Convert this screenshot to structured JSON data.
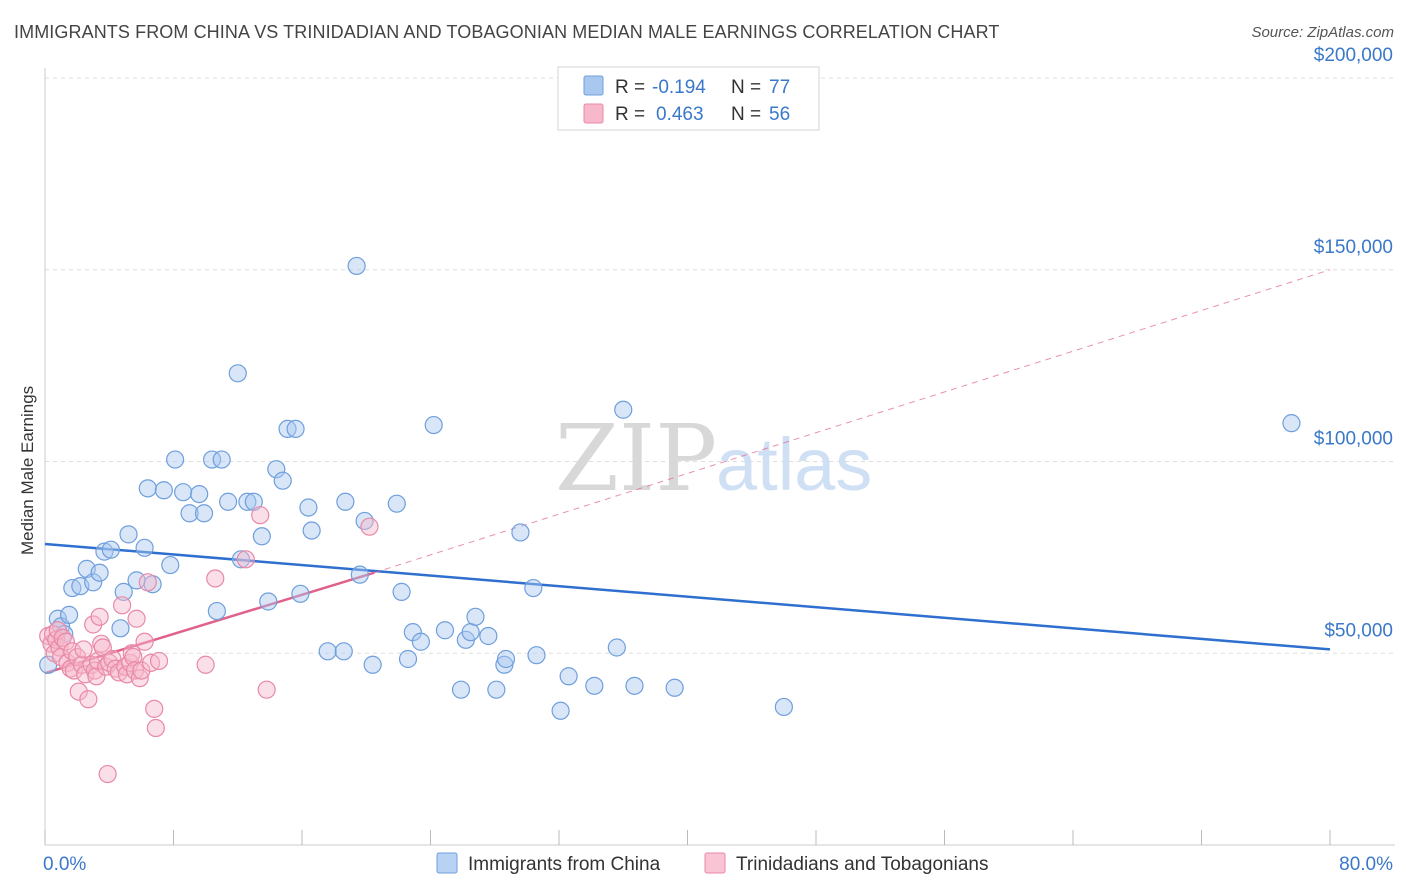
{
  "title": "IMMIGRANTS FROM CHINA VS TRINIDADIAN AND TOBAGONIAN MEDIAN MALE EARNINGS CORRELATION CHART",
  "source": "Source: ZipAtlas.com",
  "watermark": {
    "zip": "ZIP",
    "atlas": "atlas"
  },
  "legend": {
    "rows": [
      {
        "r_label": "R =",
        "r_value": "-0.194",
        "n_label": "N =",
        "n_value": "77",
        "color": "#a9c8f0",
        "stroke": "#6f9fdc"
      },
      {
        "r_label": "R =",
        "r_value": "0.463",
        "n_label": "N =",
        "n_value": "56",
        "color": "#f7b8cb",
        "stroke": "#e889a6"
      }
    ]
  },
  "chart_data": {
    "type": "scatter",
    "title": "IMMIGRANTS FROM CHINA VS TRINIDADIAN AND TOBAGONIAN MEDIAN MALE EARNINGS CORRELATION CHART",
    "xlabel": "",
    "ylabel": "Median Male Earnings",
    "xlim": [
      0,
      80
    ],
    "ylim": [
      0,
      210000
    ],
    "x_tick_labels": [
      "0.0%",
      "80.0%"
    ],
    "y_ticks": [
      {
        "value": 50000,
        "label": "$50,000"
      },
      {
        "value": 100000,
        "label": "$100,000"
      },
      {
        "value": 150000,
        "label": "$150,000"
      },
      {
        "value": 200000,
        "label": "$200,000"
      }
    ],
    "grid": true,
    "legend_position": "bottom",
    "series": [
      {
        "name": "Immigrants from China",
        "color": "#6f9fdc",
        "fill": "#a9c8f0",
        "trend": {
          "x": [
            0,
            80
          ],
          "y": [
            78500,
            51000
          ],
          "color": "#2f6fcf"
        },
        "points": [
          [
            0.2,
            47000
          ],
          [
            0.8,
            59000
          ],
          [
            1.0,
            57000
          ],
          [
            1.2,
            55000
          ],
          [
            1.5,
            60000
          ],
          [
            1.7,
            67000
          ],
          [
            2.2,
            67500
          ],
          [
            2.6,
            72000
          ],
          [
            3.0,
            68500
          ],
          [
            3.4,
            71000
          ],
          [
            3.7,
            76500
          ],
          [
            4.1,
            77000
          ],
          [
            4.7,
            56500
          ],
          [
            4.9,
            66000
          ],
          [
            5.2,
            81000
          ],
          [
            5.7,
            69000
          ],
          [
            6.2,
            77500
          ],
          [
            6.7,
            68000
          ],
          [
            6.4,
            93000
          ],
          [
            7.4,
            92500
          ],
          [
            7.8,
            73000
          ],
          [
            8.1,
            100500
          ],
          [
            8.6,
            92000
          ],
          [
            9.0,
            86500
          ],
          [
            9.6,
            91500
          ],
          [
            9.9,
            86500
          ],
          [
            10.4,
            100500
          ],
          [
            11.0,
            100500
          ],
          [
            10.7,
            61000
          ],
          [
            11.4,
            89500
          ],
          [
            12.0,
            123000
          ],
          [
            12.2,
            74500
          ],
          [
            12.6,
            89500
          ],
          [
            13.0,
            89500
          ],
          [
            13.5,
            80500
          ],
          [
            13.9,
            63500
          ],
          [
            14.4,
            98000
          ],
          [
            14.8,
            95000
          ],
          [
            15.1,
            108500
          ],
          [
            15.6,
            108500
          ],
          [
            15.9,
            65500
          ],
          [
            16.4,
            88000
          ],
          [
            16.6,
            82000
          ],
          [
            17.6,
            50500
          ],
          [
            18.6,
            50500
          ],
          [
            18.7,
            89500
          ],
          [
            19.4,
            151000
          ],
          [
            19.6,
            70500
          ],
          [
            19.9,
            84500
          ],
          [
            20.4,
            47000
          ],
          [
            21.9,
            89000
          ],
          [
            22.2,
            66000
          ],
          [
            22.6,
            48500
          ],
          [
            22.9,
            55500
          ],
          [
            23.4,
            53000
          ],
          [
            24.2,
            109500
          ],
          [
            24.9,
            56000
          ],
          [
            25.9,
            40500
          ],
          [
            26.2,
            53500
          ],
          [
            26.5,
            55500
          ],
          [
            26.8,
            59500
          ],
          [
            27.6,
            54500
          ],
          [
            28.1,
            40500
          ],
          [
            28.6,
            47000
          ],
          [
            28.7,
            48500
          ],
          [
            29.6,
            81500
          ],
          [
            30.4,
            67000
          ],
          [
            30.6,
            49500
          ],
          [
            32.1,
            35000
          ],
          [
            32.6,
            44000
          ],
          [
            34.2,
            41500
          ],
          [
            35.6,
            51500
          ],
          [
            36.0,
            113500
          ],
          [
            36.7,
            41500
          ],
          [
            39.2,
            41000
          ],
          [
            46.0,
            36000
          ],
          [
            77.6,
            110000
          ]
        ]
      },
      {
        "name": "Trinidadians and Tobagonians",
        "color": "#e889a6",
        "fill": "#f7b8cb",
        "trend": {
          "x": [
            0,
            20.5
          ],
          "y": [
            44800,
            71000
          ],
          "color": "#e0628b",
          "ext_x": [
            20.5,
            80
          ],
          "ext_y": [
            71000,
            150000
          ]
        },
        "points": [
          [
            0.2,
            54500
          ],
          [
            0.4,
            52500
          ],
          [
            0.5,
            55000
          ],
          [
            0.6,
            50000
          ],
          [
            0.7,
            53500
          ],
          [
            0.8,
            56000
          ],
          [
            0.9,
            51500
          ],
          [
            1.0,
            49000
          ],
          [
            1.1,
            54000
          ],
          [
            1.3,
            53000
          ],
          [
            1.4,
            47500
          ],
          [
            1.6,
            46000
          ],
          [
            1.7,
            50500
          ],
          [
            1.8,
            45500
          ],
          [
            2.0,
            49000
          ],
          [
            2.1,
            40000
          ],
          [
            2.3,
            47000
          ],
          [
            2.4,
            51000
          ],
          [
            2.5,
            44500
          ],
          [
            2.7,
            38000
          ],
          [
            2.9,
            47000
          ],
          [
            3.0,
            57500
          ],
          [
            3.1,
            45500
          ],
          [
            3.2,
            44000
          ],
          [
            3.3,
            48000
          ],
          [
            3.4,
            59500
          ],
          [
            3.5,
            52500
          ],
          [
            3.6,
            51500
          ],
          [
            3.8,
            46500
          ],
          [
            3.9,
            18500
          ],
          [
            4.0,
            47500
          ],
          [
            4.2,
            48500
          ],
          [
            4.4,
            46000
          ],
          [
            4.6,
            45000
          ],
          [
            4.8,
            62500
          ],
          [
            5.0,
            46500
          ],
          [
            5.1,
            44500
          ],
          [
            5.3,
            47500
          ],
          [
            5.4,
            50000
          ],
          [
            5.5,
            49000
          ],
          [
            5.6,
            45500
          ],
          [
            5.7,
            59000
          ],
          [
            5.9,
            43500
          ],
          [
            6.0,
            45500
          ],
          [
            6.2,
            53000
          ],
          [
            6.4,
            68500
          ],
          [
            6.6,
            47500
          ],
          [
            6.8,
            35500
          ],
          [
            6.9,
            30500
          ],
          [
            7.1,
            48000
          ],
          [
            10.0,
            47000
          ],
          [
            10.6,
            69500
          ],
          [
            12.5,
            74500
          ],
          [
            13.4,
            86000
          ],
          [
            13.8,
            40500
          ],
          [
            20.2,
            83000
          ]
        ]
      }
    ]
  },
  "bottom_legend": [
    {
      "label": "Immigrants from China",
      "fill": "#b8d2f4",
      "stroke": "#6f9fdc"
    },
    {
      "label": "Trinidadians and Tobagonians",
      "fill": "#f9c5d5",
      "stroke": "#e889a6"
    }
  ]
}
